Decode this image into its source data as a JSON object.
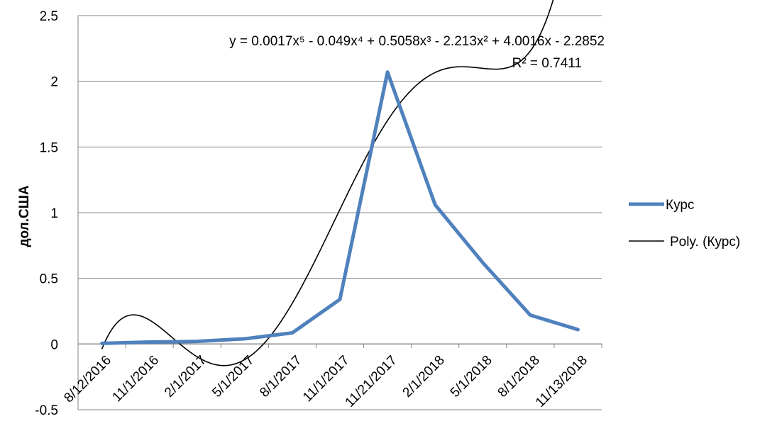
{
  "chart_data": {
    "type": "line",
    "title": "",
    "xlabel": "",
    "ylabel": "дол.США",
    "ylim": [
      -0.5,
      2.5
    ],
    "yticks": [
      "-0.5",
      "0",
      "0.5",
      "1",
      "1.5",
      "2",
      "2.5"
    ],
    "grid": "horizontal",
    "categories": [
      "8/12/2016",
      "11/1/2016",
      "2/1/2017",
      "5/1/2017",
      "8/1/2017",
      "11/1/2017",
      "11/21/2017",
      "2/1/2018",
      "5/1/2018",
      "8/1/2018",
      "11/13/2018"
    ],
    "series": [
      {
        "name": "Курс",
        "color": "#4F81BD",
        "values": [
          0.005,
          0.015,
          0.02,
          0.04,
          0.085,
          0.34,
          2.07,
          1.06,
          0.62,
          0.22,
          0.11
        ]
      }
    ],
    "trendline": {
      "name": "Poly. (Курс)",
      "type": "polynomial",
      "order": 5,
      "color": "#000000",
      "coefficients": [
        0.0017,
        -0.049,
        0.5058,
        -2.213,
        4.0016,
        -2.2852
      ],
      "equation_text": "y = 0.0017x⁵ - 0.049x⁴ + 0.5058x³ - 2.213x² + 4.0016x - 2.2852",
      "r2_text": "R² = 0.7411"
    },
    "legend": {
      "position": "right",
      "items": [
        "Курс",
        "Poly. (Курс)"
      ]
    }
  }
}
